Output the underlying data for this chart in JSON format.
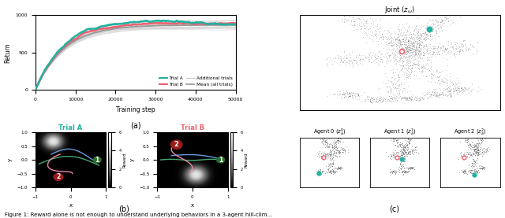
{
  "title_a": "Trial A",
  "title_b": "Trial B",
  "joint_title": "Joint ($z_{\\omega}$)",
  "agent0_title": "Agent 0 ($z^0_a$)",
  "agent1_title": "Agent 1 ($z^1_a$)",
  "agent2_title": "Agent 2 ($z^2_a$)",
  "xlabel_training": "Training step",
  "ylabel_return": "Return",
  "label_trial_a": "Trial A",
  "label_trial_b": "Trial B",
  "label_additional": "Additional trials",
  "label_mean": "Mean (all trials)",
  "color_trial_a": "#20b2a0",
  "color_trial_b": "#f06070",
  "color_additional": "#cccccc",
  "color_mean": "#999999",
  "xlim_training": [
    0,
    50000
  ],
  "ylim_training": [
    0,
    1000
  ],
  "caption_a": "(a)",
  "caption_b": "(b)",
  "caption_c": "(c)",
  "color_green_circle": "#2d6e2d",
  "color_red_circle": "#9b1b1b",
  "color_agent_green": "#44aa77",
  "color_agent_blue": "#6699dd",
  "color_agent_pink": "#ee88aa"
}
